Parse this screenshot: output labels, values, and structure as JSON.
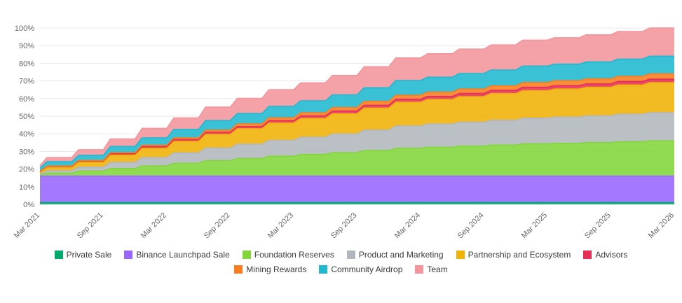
{
  "chart_data": {
    "type": "area",
    "stacked": true,
    "title": "",
    "xlabel": "",
    "ylabel": "",
    "ylim": [
      0,
      100
    ],
    "grid": true,
    "legend_position": "bottom",
    "y_tick_labels": [
      "0%",
      "10%",
      "20%",
      "30%",
      "40%",
      "50%",
      "60%",
      "70%",
      "80%",
      "90%",
      "100%"
    ],
    "x_tick_labels": [
      "Mar 2021",
      "Sep 2021",
      "Mar 2022",
      "Sep 2022",
      "Mar 2023",
      "Sep 2023",
      "Mar 2024",
      "Sep 2024",
      "Mar 2025",
      "Sep 2025",
      "Mar 2026"
    ],
    "x_points": [
      "Mar 2021",
      "Jun 2021",
      "Sep 2021",
      "Dec 2021",
      "Mar 2022",
      "Jun 2022",
      "Sep 2022",
      "Dec 2022",
      "Mar 2023",
      "Jun 2023",
      "Sep 2023",
      "Dec 2023",
      "Mar 2024",
      "Jun 2024",
      "Sep 2024",
      "Dec 2024",
      "Mar 2025",
      "Jun 2025",
      "Sep 2025",
      "Dec 2025",
      "Mar 2026"
    ],
    "value_unit": "% of total supply unlocked (cumulative)",
    "series": [
      {
        "name": "Private Sale",
        "color": "#00ab6b",
        "values": [
          1,
          1,
          1,
          1,
          1,
          1,
          1,
          1,
          1,
          1,
          1,
          1,
          1,
          1,
          1,
          1,
          1,
          1,
          1,
          1,
          1
        ]
      },
      {
        "name": "Binance Launchpad Sale",
        "color": "#9966ff",
        "values": [
          15,
          15,
          15,
          15,
          15,
          15,
          15,
          15,
          15,
          15,
          15,
          15,
          15,
          15,
          15,
          15,
          15,
          15,
          15,
          15,
          15
        ]
      },
      {
        "name": "Foundation Reserves",
        "color": "#82d63a",
        "values": [
          0.5,
          1.6,
          2.8,
          4.3,
          5.8,
          7.3,
          8.8,
          10.0,
          11.3,
          12.3,
          13.3,
          14.5,
          15.8,
          16.4,
          17.0,
          17.6,
          18.3,
          18.6,
          19.0,
          19.5,
          20.0
        ]
      },
      {
        "name": "Product and Marketing",
        "color": "#b2b7bd",
        "values": [
          0.5,
          1.4,
          2.3,
          3.5,
          4.7,
          5.9,
          7.1,
          8.1,
          9.0,
          9.8,
          10.6,
          11.6,
          12.6,
          13.1,
          13.6,
          14.1,
          14.6,
          14.9,
          15.2,
          15.6,
          16.0
        ]
      },
      {
        "name": "Partnership and Ecosystem",
        "color": "#f0b204",
        "values": [
          1.0,
          1.9,
          2.8,
          4.1,
          5.3,
          6.5,
          7.8,
          8.8,
          9.8,
          10.6,
          11.5,
          12.5,
          13.5,
          14.0,
          14.5,
          15.1,
          15.6,
          15.9,
          16.2,
          16.6,
          17.0
        ]
      },
      {
        "name": "Advisors",
        "color": "#e62e56",
        "values": [
          0.5,
          0.6,
          0.7,
          0.8,
          0.9,
          1.0,
          1.1,
          1.2,
          1.3,
          1.4,
          1.5,
          1.6,
          1.7,
          1.7,
          1.8,
          1.8,
          1.9,
          1.9,
          1.9,
          2.0,
          2.0
        ]
      },
      {
        "name": "Mining Rewards",
        "color": "#f97d1c",
        "values": [
          0.0,
          0.2,
          0.3,
          0.6,
          0.8,
          1.0,
          1.3,
          1.5,
          1.7,
          1.8,
          2.0,
          2.2,
          2.3,
          2.4,
          2.5,
          2.6,
          2.7,
          2.8,
          2.9,
          2.9,
          3.0
        ]
      },
      {
        "name": "Community Airdrop",
        "color": "#1fb8d0",
        "values": [
          2.0,
          2.5,
          2.9,
          3.5,
          4.2,
          4.8,
          5.4,
          5.9,
          6.4,
          6.8,
          7.2,
          7.7,
          8.3,
          8.5,
          8.8,
          9.0,
          9.3,
          9.4,
          9.6,
          9.8,
          10.0
        ]
      },
      {
        "name": "Team",
        "color": "#f4949c",
        "values": [
          1.5,
          2.3,
          3.2,
          4.3,
          5.4,
          6.5,
          7.6,
          8.6,
          9.5,
          10.2,
          11.0,
          11.9,
          12.8,
          13.3,
          13.8,
          14.2,
          14.7,
          15.0,
          15.3,
          15.6,
          16.0
        ]
      }
    ],
    "gridline_color": "#e8e8e8",
    "baseline_color": "#c9c9c9",
    "tick_label_color": "#666666"
  }
}
